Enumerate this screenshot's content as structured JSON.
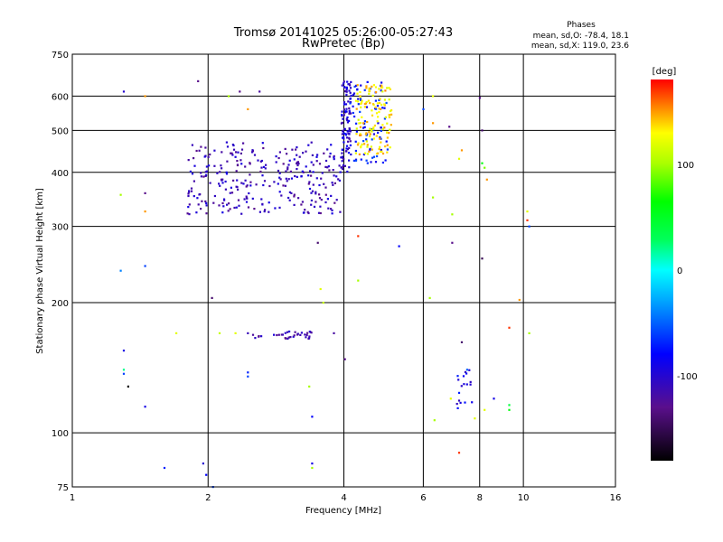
{
  "chart_data": {
    "type": "scatter",
    "title": "Tromsø 20141025 05:26:00-05:27:43",
    "subtitle": "RwPretec (Bp)",
    "xlabel": "Frequency [MHz]",
    "ylabel": "Stationary phase Virtual Height [km]",
    "x_scale": "log",
    "y_scale": "log",
    "xlim": [
      1,
      16
    ],
    "ylim": [
      75,
      750
    ],
    "x_ticks": [
      1,
      2,
      4,
      6,
      8,
      10,
      16
    ],
    "x_tick_labels": [
      "1",
      "2",
      "4",
      "6",
      "8",
      "10",
      "16"
    ],
    "x_grid": [
      2,
      4,
      6,
      8,
      10
    ],
    "y_ticks": [
      75,
      100,
      200,
      300,
      400,
      500,
      600,
      750
    ],
    "y_tick_labels": [
      "75",
      "100",
      "200",
      "300",
      "400",
      "500",
      "600",
      "750"
    ],
    "y_grid": [
      100,
      200,
      300,
      400,
      500,
      600
    ],
    "grid": true,
    "stats": {
      "heading": "Phases",
      "o_line": "mean, sd,O: -78.4, 18.1",
      "x_line": "mean, sd,X: 119.0, 23.6"
    },
    "colorbar": {
      "label": "[deg]",
      "range": [
        -180,
        180
      ],
      "ticks": [
        100,
        0,
        -100
      ],
      "tick_labels": [
        "100",
        "0",
        "-100"
      ],
      "colormap": "rainbow"
    },
    "clusters": [
      {
        "x_range": [
          1.8,
          4.0
        ],
        "y_range": [
          320,
          470
        ],
        "phase": -110,
        "count": 300
      },
      {
        "x_range": [
          3.95,
          4.15
        ],
        "y_range": [
          400,
          660
        ],
        "phase": -100,
        "count": 90
      },
      {
        "x_range": [
          4.1,
          5.0
        ],
        "y_range": [
          420,
          650
        ],
        "phase": -75,
        "count": 80
      },
      {
        "x_range": [
          4.25,
          5.1
        ],
        "y_range": [
          440,
          640
        ],
        "phase": 135,
        "count": 130
      },
      {
        "x_range": [
          2.5,
          3.5
        ],
        "y_range": [
          165,
          172
        ],
        "phase": -115,
        "count": 35
      },
      {
        "x_range": [
          7.1,
          7.7
        ],
        "y_range": [
          112,
          140
        ],
        "phase": -90,
        "count": 18
      }
    ],
    "points": [
      {
        "x": 1.3,
        "y": 615,
        "phase": -100
      },
      {
        "x": 1.45,
        "y": 600,
        "phase": 150
      },
      {
        "x": 1.9,
        "y": 650,
        "phase": -130
      },
      {
        "x": 2.22,
        "y": 600,
        "phase": 100
      },
      {
        "x": 2.35,
        "y": 615,
        "phase": -130
      },
      {
        "x": 2.45,
        "y": 560,
        "phase": 150
      },
      {
        "x": 2.6,
        "y": 615,
        "phase": -120
      },
      {
        "x": 1.28,
        "y": 355,
        "phase": 100
      },
      {
        "x": 1.45,
        "y": 358,
        "phase": -130
      },
      {
        "x": 1.45,
        "y": 325,
        "phase": 150
      },
      {
        "x": 1.28,
        "y": 237,
        "phase": -40
      },
      {
        "x": 1.45,
        "y": 243,
        "phase": -60
      },
      {
        "x": 2.04,
        "y": 205,
        "phase": -140
      },
      {
        "x": 3.5,
        "y": 275,
        "phase": -140
      },
      {
        "x": 3.55,
        "y": 215,
        "phase": 120
      },
      {
        "x": 3.6,
        "y": 200,
        "phase": 110
      },
      {
        "x": 4.3,
        "y": 285,
        "phase": 170
      },
      {
        "x": 4.3,
        "y": 225,
        "phase": 100
      },
      {
        "x": 5.3,
        "y": 270,
        "phase": -80
      },
      {
        "x": 6.0,
        "y": 560,
        "phase": -60
      },
      {
        "x": 6.3,
        "y": 520,
        "phase": 150
      },
      {
        "x": 6.3,
        "y": 350,
        "phase": 100
      },
      {
        "x": 6.3,
        "y": 600,
        "phase": 120
      },
      {
        "x": 6.2,
        "y": 205,
        "phase": 100
      },
      {
        "x": 6.85,
        "y": 510,
        "phase": -130
      },
      {
        "x": 6.95,
        "y": 320,
        "phase": 100
      },
      {
        "x": 6.95,
        "y": 275,
        "phase": -130
      },
      {
        "x": 7.3,
        "y": 450,
        "phase": 150
      },
      {
        "x": 7.2,
        "y": 430,
        "phase": 120
      },
      {
        "x": 8.0,
        "y": 595,
        "phase": -130
      },
      {
        "x": 8.1,
        "y": 500,
        "phase": -140
      },
      {
        "x": 8.1,
        "y": 420,
        "phase": 60
      },
      {
        "x": 8.2,
        "y": 410,
        "phase": 90
      },
      {
        "x": 8.3,
        "y": 385,
        "phase": 150
      },
      {
        "x": 8.1,
        "y": 253,
        "phase": -150
      },
      {
        "x": 9.3,
        "y": 175,
        "phase": 170
      },
      {
        "x": 9.8,
        "y": 203,
        "phase": 150
      },
      {
        "x": 10.2,
        "y": 325,
        "phase": 120
      },
      {
        "x": 10.2,
        "y": 310,
        "phase": 170
      },
      {
        "x": 10.3,
        "y": 300,
        "phase": -60
      },
      {
        "x": 10.3,
        "y": 170,
        "phase": 100
      },
      {
        "x": 1.7,
        "y": 170,
        "phase": 120
      },
      {
        "x": 2.12,
        "y": 170,
        "phase": 110
      },
      {
        "x": 2.3,
        "y": 170,
        "phase": 120
      },
      {
        "x": 2.45,
        "y": 170,
        "phase": -110
      },
      {
        "x": 3.8,
        "y": 170,
        "phase": -120
      },
      {
        "x": 1.3,
        "y": 155,
        "phase": -90
      },
      {
        "x": 1.3,
        "y": 140,
        "phase": 20
      },
      {
        "x": 1.3,
        "y": 137,
        "phase": -60
      },
      {
        "x": 1.33,
        "y": 128,
        "phase": -180
      },
      {
        "x": 1.45,
        "y": 115,
        "phase": -90
      },
      {
        "x": 1.6,
        "y": 83,
        "phase": -70
      },
      {
        "x": 1.95,
        "y": 85,
        "phase": -100
      },
      {
        "x": 1.98,
        "y": 80,
        "phase": -80
      },
      {
        "x": 2.05,
        "y": 75,
        "phase": -60
      },
      {
        "x": 2.45,
        "y": 138,
        "phase": -70
      },
      {
        "x": 2.45,
        "y": 135,
        "phase": -60
      },
      {
        "x": 3.35,
        "y": 128,
        "phase": 100
      },
      {
        "x": 3.4,
        "y": 109,
        "phase": -80
      },
      {
        "x": 3.4,
        "y": 85,
        "phase": -90
      },
      {
        "x": 3.4,
        "y": 83,
        "phase": 100
      },
      {
        "x": 4.02,
        "y": 148,
        "phase": -130
      },
      {
        "x": 6.35,
        "y": 107,
        "phase": 100
      },
      {
        "x": 6.9,
        "y": 120,
        "phase": 120
      },
      {
        "x": 7.3,
        "y": 162,
        "phase": -140
      },
      {
        "x": 7.2,
        "y": 90,
        "phase": 170
      },
      {
        "x": 7.5,
        "y": 140,
        "phase": -50
      },
      {
        "x": 8.6,
        "y": 120,
        "phase": -90
      },
      {
        "x": 9.3,
        "y": 116,
        "phase": 40
      },
      {
        "x": 9.3,
        "y": 113,
        "phase": 60
      },
      {
        "x": 8.2,
        "y": 113,
        "phase": 120
      },
      {
        "x": 7.8,
        "y": 108,
        "phase": 120
      }
    ]
  }
}
